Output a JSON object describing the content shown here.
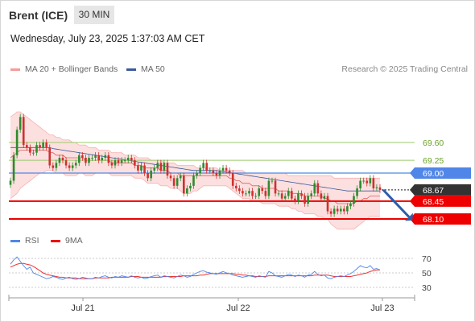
{
  "header": {
    "instrument": "Brent (ICE)",
    "timeframe": "30 MIN",
    "datetime": "Wednesday, July 23, 2025 1:37:03 AM CET"
  },
  "legend": {
    "bollinger_label": "MA 20 + Bollinger Bands",
    "ma50_label": "MA 50",
    "credit": "Research © 2025 Trading Central",
    "rsi_label": "RSI",
    "rsi_ma_label": "9MA"
  },
  "colors": {
    "bollinger": "#f59a9a",
    "ma50": "#3a5a9c",
    "support": "#ee0000",
    "resistance_green": "#9acb6a",
    "pivot_blue": "#4f86e8",
    "current": "#333333",
    "arrow": "#2d5ea8",
    "candle_up": "#2e8b2e",
    "candle_down": "#d03030"
  },
  "chart_data": [
    {
      "type": "candlestick",
      "title": "",
      "xlabel": "",
      "ylabel": "",
      "ylim": [
        67.8,
        70.5
      ],
      "x_ticks": [
        "Jul 21",
        "Jul 22",
        "Jul 23"
      ],
      "levels": [
        {
          "label": "69.60",
          "value": 69.6,
          "kind": "resistance-green"
        },
        {
          "label": "69.25",
          "value": 69.25,
          "kind": "resistance-green"
        },
        {
          "label": "69.00",
          "value": 69.0,
          "kind": "pivot"
        },
        {
          "label": "68.67",
          "value": 68.67,
          "kind": "current"
        },
        {
          "label": "68.45",
          "value": 68.45,
          "kind": "support"
        },
        {
          "label": "68.10",
          "value": 68.1,
          "kind": "support"
        }
      ],
      "close": [
        68.85,
        69.35,
        69.85,
        70.1,
        69.55,
        69.5,
        69.4,
        69.4,
        69.55,
        69.5,
        69.6,
        69.5,
        69.15,
        69.1,
        69.2,
        69.3,
        69.25,
        69.15,
        69.1,
        69.15,
        69.2,
        69.35,
        69.3,
        69.2,
        69.3,
        69.3,
        69.35,
        69.25,
        69.3,
        69.35,
        69.2,
        69.15,
        69.25,
        69.2,
        69.25,
        69.25,
        69.3,
        69.25,
        69.15,
        69.05,
        69.15,
        69.0,
        68.9,
        69.05,
        69.1,
        69.2,
        69.05,
        69.2,
        68.95,
        68.9,
        68.75,
        68.9,
        68.95,
        68.6,
        68.7,
        68.75,
        68.95,
        69.0,
        69.1,
        69.2,
        69.05,
        69.05,
        69.0,
        68.95,
        69.05,
        69.1,
        69.05,
        69.0,
        68.75,
        68.7,
        68.65,
        68.6,
        68.6,
        68.65,
        68.55,
        68.55,
        68.7,
        68.65,
        68.55,
        68.85,
        68.85,
        68.6,
        68.6,
        68.5,
        68.55,
        68.65,
        68.5,
        68.45,
        68.6,
        68.55,
        68.4,
        68.55,
        68.6,
        68.8,
        68.6,
        68.5,
        68.55,
        68.25,
        68.2,
        68.3,
        68.25,
        68.3,
        68.25,
        68.35,
        68.4,
        68.55,
        68.7,
        68.85,
        68.85,
        68.8,
        68.9,
        68.7,
        68.72,
        68.67
      ],
      "ma20_upper": [
        70.1,
        70.15,
        70.2,
        70.2,
        70.15,
        70.1,
        70.05,
        70.0,
        69.95,
        69.9,
        69.85,
        69.8,
        69.75,
        69.75,
        69.7,
        69.7,
        69.65,
        69.65,
        69.65,
        69.6,
        69.6,
        69.55,
        69.55,
        69.55,
        69.5,
        69.5,
        69.5,
        69.45,
        69.45,
        69.45,
        69.45,
        69.4,
        69.4,
        69.4,
        69.4,
        69.35,
        69.35,
        69.35,
        69.35,
        69.3,
        69.3,
        69.3,
        69.3,
        69.25,
        69.25,
        69.25,
        69.25,
        69.2,
        69.2,
        69.2,
        69.2,
        69.15,
        69.15,
        69.15,
        69.15,
        69.15,
        69.15,
        69.1,
        69.1,
        69.1,
        69.1,
        69.1,
        69.1,
        69.1,
        69.05,
        69.05,
        69.05,
        69.05,
        69.05,
        69.05,
        69.05,
        69.05,
        69.0,
        69.0,
        69.0,
        69.0,
        69.0,
        69.0,
        69.0,
        69.0,
        69.0,
        69.0,
        69.0,
        69.0,
        69.0,
        68.95,
        68.95,
        68.95,
        68.95,
        68.95,
        68.95,
        68.95,
        68.95,
        68.95,
        68.95,
        68.95,
        68.95,
        68.95,
        68.95,
        68.9,
        68.9,
        68.9,
        68.9,
        68.9,
        68.9,
        68.9,
        68.9,
        68.9,
        68.9,
        68.9,
        68.9,
        68.9,
        68.9,
        68.9
      ],
      "ma20_middle": [
        69.3,
        69.35,
        69.4,
        69.45,
        69.45,
        69.45,
        69.45,
        69.45,
        69.45,
        69.45,
        69.45,
        69.45,
        69.4,
        69.4,
        69.35,
        69.35,
        69.35,
        69.3,
        69.3,
        69.3,
        69.3,
        69.3,
        69.3,
        69.25,
        69.25,
        69.25,
        69.25,
        69.25,
        69.25,
        69.25,
        69.25,
        69.2,
        69.2,
        69.2,
        69.2,
        69.2,
        69.2,
        69.2,
        69.15,
        69.15,
        69.15,
        69.1,
        69.1,
        69.1,
        69.1,
        69.1,
        69.05,
        69.05,
        69.05,
        69.0,
        69.0,
        69.0,
        68.95,
        68.95,
        68.95,
        68.95,
        68.95,
        68.95,
        68.95,
        68.95,
        68.95,
        68.95,
        68.95,
        68.95,
        68.95,
        68.95,
        68.95,
        68.9,
        68.9,
        68.85,
        68.85,
        68.8,
        68.8,
        68.8,
        68.75,
        68.75,
        68.75,
        68.7,
        68.7,
        68.7,
        68.7,
        68.7,
        68.65,
        68.65,
        68.65,
        68.65,
        68.6,
        68.6,
        68.6,
        68.6,
        68.55,
        68.55,
        68.55,
        68.55,
        68.55,
        68.55,
        68.5,
        68.5,
        68.45,
        68.45,
        68.4,
        68.4,
        68.4,
        68.4,
        68.4,
        68.4,
        68.45,
        68.45,
        68.5,
        68.5,
        68.55,
        68.55,
        68.55,
        68.55
      ],
      "ma20_lower": [
        68.5,
        68.55,
        68.6,
        68.7,
        68.75,
        68.8,
        68.85,
        68.9,
        68.95,
        69.0,
        69.0,
        69.05,
        69.05,
        69.05,
        69.0,
        69.0,
        69.0,
        68.95,
        68.95,
        68.95,
        68.95,
        69.0,
        69.0,
        68.95,
        68.95,
        68.95,
        69.0,
        69.0,
        69.0,
        69.0,
        69.0,
        68.95,
        68.95,
        68.95,
        68.95,
        68.95,
        68.95,
        68.95,
        68.9,
        68.9,
        68.9,
        68.85,
        68.8,
        68.8,
        68.8,
        68.8,
        68.75,
        68.75,
        68.75,
        68.7,
        68.7,
        68.7,
        68.65,
        68.6,
        68.6,
        68.6,
        68.65,
        68.65,
        68.7,
        68.75,
        68.75,
        68.75,
        68.75,
        68.75,
        68.75,
        68.75,
        68.75,
        68.7,
        68.65,
        68.6,
        68.55,
        68.5,
        68.5,
        68.5,
        68.45,
        68.45,
        68.45,
        68.4,
        68.4,
        68.4,
        68.4,
        68.4,
        68.35,
        68.35,
        68.35,
        68.35,
        68.3,
        68.3,
        68.25,
        68.25,
        68.2,
        68.2,
        68.2,
        68.2,
        68.15,
        68.15,
        68.1,
        68.1,
        68.0,
        67.95,
        67.9,
        67.9,
        67.9,
        67.9,
        67.9,
        67.9,
        67.95,
        68.0,
        68.05,
        68.1,
        68.15,
        68.15,
        68.15,
        68.15
      ],
      "ma50": [
        69.5,
        69.5,
        69.5,
        69.5,
        69.5,
        69.5,
        69.5,
        69.5,
        69.5,
        69.5,
        69.5,
        69.5,
        69.5,
        69.48,
        69.47,
        69.46,
        69.45,
        69.44,
        69.43,
        69.42,
        69.41,
        69.4,
        69.39,
        69.38,
        69.37,
        69.36,
        69.35,
        69.34,
        69.33,
        69.32,
        69.31,
        69.3,
        69.29,
        69.28,
        69.27,
        69.26,
        69.25,
        69.24,
        69.23,
        69.22,
        69.21,
        69.2,
        69.19,
        69.18,
        69.17,
        69.16,
        69.15,
        69.14,
        69.13,
        69.12,
        69.11,
        69.1,
        69.09,
        69.08,
        69.07,
        69.06,
        69.05,
        69.05,
        69.05,
        69.05,
        69.05,
        69.05,
        69.05,
        69.05,
        69.04,
        69.03,
        69.02,
        69.01,
        69.0,
        68.99,
        68.98,
        68.97,
        68.96,
        68.95,
        68.94,
        68.93,
        68.92,
        68.91,
        68.9,
        68.89,
        68.88,
        68.87,
        68.86,
        68.85,
        68.84,
        68.83,
        68.82,
        68.81,
        68.8,
        68.79,
        68.78,
        68.77,
        68.76,
        68.75,
        68.74,
        68.73,
        68.72,
        68.71,
        68.7,
        68.69,
        68.68,
        68.67,
        68.66,
        68.65,
        68.65,
        68.65,
        68.65,
        68.65,
        68.65,
        68.65,
        68.65,
        68.65,
        68.65,
        68.65
      ]
    },
    {
      "type": "line",
      "title": "",
      "xlabel": "",
      "ylabel": "",
      "ylim": [
        20,
        80
      ],
      "y_ticks": [
        70,
        50,
        30
      ],
      "series": [
        {
          "name": "RSI",
          "values": [
            62,
            68,
            72,
            66,
            60,
            55,
            58,
            50,
            48,
            46,
            44,
            42,
            43,
            45,
            44,
            42,
            41,
            43,
            44,
            42,
            41,
            42,
            44,
            43,
            42,
            42,
            44,
            43,
            45,
            46,
            44,
            43,
            45,
            44,
            46,
            45,
            44,
            46,
            44,
            43,
            44,
            42,
            43,
            45,
            46,
            47,
            44,
            46,
            45,
            44,
            43,
            45,
            47,
            46,
            44,
            45,
            48,
            50,
            52,
            53,
            51,
            50,
            49,
            48,
            50,
            52,
            50,
            49,
            47,
            46,
            45,
            44,
            45,
            46,
            45,
            44,
            46,
            45,
            44,
            52,
            50,
            46,
            45,
            44,
            46,
            48,
            47,
            45,
            47,
            46,
            44,
            47,
            48,
            52,
            48,
            46,
            47,
            43,
            42,
            44,
            45,
            46,
            45,
            47,
            49,
            52,
            56,
            60,
            58,
            57,
            60,
            55,
            56,
            54
          ]
        },
        {
          "name": "9MA",
          "values": [
            58,
            60,
            62,
            63,
            63,
            62,
            61,
            59,
            56,
            53,
            50,
            48,
            47,
            46,
            45,
            44,
            44,
            43,
            43,
            43,
            43,
            42,
            42,
            42,
            42,
            42,
            43,
            43,
            43,
            43,
            43,
            44,
            44,
            44,
            44,
            44,
            44,
            45,
            45,
            45,
            44,
            44,
            44,
            44,
            44,
            44,
            44,
            45,
            45,
            45,
            45,
            45,
            45,
            46,
            46,
            46,
            46,
            46,
            47,
            47,
            48,
            49,
            49,
            49,
            49,
            49,
            49,
            49,
            49,
            48,
            48,
            47,
            47,
            46,
            46,
            45,
            45,
            45,
            45,
            46,
            46,
            46,
            46,
            46,
            46,
            46,
            46,
            46,
            46,
            46,
            46,
            46,
            46,
            47,
            47,
            47,
            47,
            47,
            46,
            45,
            45,
            45,
            45,
            45,
            45,
            46,
            47,
            48,
            49,
            50,
            52,
            53,
            54,
            54
          ]
        }
      ]
    }
  ]
}
